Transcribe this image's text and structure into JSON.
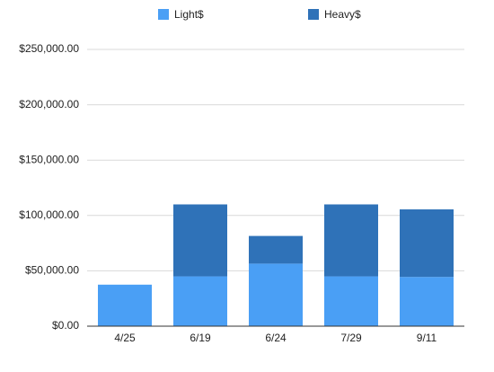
{
  "chart_data": {
    "type": "stacked_bar",
    "categories": [
      "4/25",
      "6/19",
      "6/24",
      "7/29",
      "9/11"
    ],
    "series": [
      {
        "name": "Light$",
        "color": "#4a9ff5",
        "values": [
          37500,
          45000,
          56500,
          45000,
          44500
        ]
      },
      {
        "name": "Heavy$",
        "color": "#2f72b8",
        "values": [
          0,
          65000,
          25000,
          65000,
          61000
        ]
      }
    ],
    "ylim": [
      0,
      250000
    ],
    "yticks": [
      {
        "value": 0,
        "label": "$0.00"
      },
      {
        "value": 50000,
        "label": "$50,000.00"
      },
      {
        "value": 100000,
        "label": "$100,000.00"
      },
      {
        "value": 150000,
        "label": "$150,000.00"
      },
      {
        "value": 200000,
        "label": "$200,000.00"
      },
      {
        "value": 250000,
        "label": "$250,000.00"
      }
    ],
    "grid": true,
    "legend": "top"
  }
}
